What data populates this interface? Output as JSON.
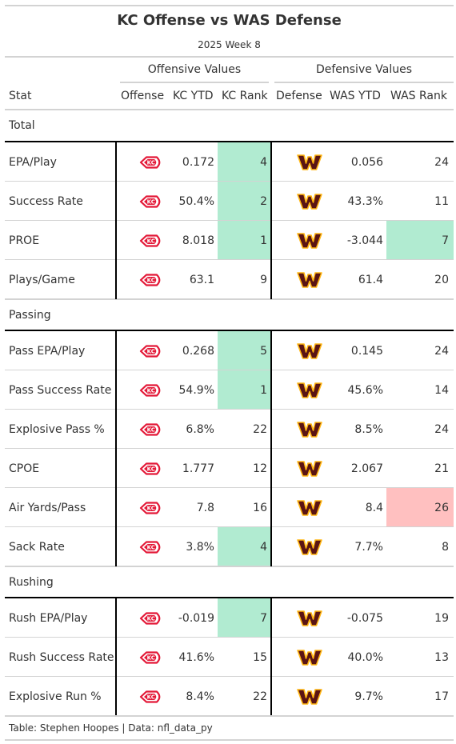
{
  "header": {
    "title": "KC Offense vs WAS Defense",
    "subtitle": "2025 Week 8"
  },
  "spanners": {
    "offense": "Offensive Values",
    "defense": "Defensive Values"
  },
  "columns": {
    "stat": "Stat",
    "offense": "Offense",
    "kc_ytd": "KC YTD",
    "kc_rank": "KC Rank",
    "defense": "Defense",
    "was_ytd": "WAS YTD",
    "was_rank": "WAS Rank"
  },
  "groups": [
    {
      "label": "Total",
      "rows": [
        {
          "stat": "EPA/Play",
          "kc_ytd": "0.172",
          "kc_rank": "4",
          "was_ytd": "0.056",
          "was_rank": "24",
          "kc_highlight": "good",
          "was_highlight": ""
        },
        {
          "stat": "Success Rate",
          "kc_ytd": "50.4%",
          "kc_rank": "2",
          "was_ytd": "43.3%",
          "was_rank": "11",
          "kc_highlight": "good",
          "was_highlight": ""
        },
        {
          "stat": "PROE",
          "kc_ytd": "8.018",
          "kc_rank": "1",
          "was_ytd": "-3.044",
          "was_rank": "7",
          "kc_highlight": "good",
          "was_highlight": "good"
        },
        {
          "stat": "Plays/Game",
          "kc_ytd": "63.1",
          "kc_rank": "9",
          "was_ytd": "61.4",
          "was_rank": "20",
          "kc_highlight": "",
          "was_highlight": ""
        }
      ]
    },
    {
      "label": "Passing",
      "rows": [
        {
          "stat": "Pass EPA/Play",
          "kc_ytd": "0.268",
          "kc_rank": "5",
          "was_ytd": "0.145",
          "was_rank": "24",
          "kc_highlight": "good",
          "was_highlight": ""
        },
        {
          "stat": "Pass Success Rate",
          "kc_ytd": "54.9%",
          "kc_rank": "1",
          "was_ytd": "45.6%",
          "was_rank": "14",
          "kc_highlight": "good",
          "was_highlight": ""
        },
        {
          "stat": "Explosive Pass %",
          "kc_ytd": "6.8%",
          "kc_rank": "22",
          "was_ytd": "8.5%",
          "was_rank": "24",
          "kc_highlight": "",
          "was_highlight": ""
        },
        {
          "stat": "CPOE",
          "kc_ytd": "1.777",
          "kc_rank": "12",
          "was_ytd": "2.067",
          "was_rank": "21",
          "kc_highlight": "",
          "was_highlight": ""
        },
        {
          "stat": "Air Yards/Pass",
          "kc_ytd": "7.8",
          "kc_rank": "16",
          "was_ytd": "8.4",
          "was_rank": "26",
          "kc_highlight": "",
          "was_highlight": "bad"
        },
        {
          "stat": "Sack Rate",
          "kc_ytd": "3.8%",
          "kc_rank": "4",
          "was_ytd": "7.7%",
          "was_rank": "8",
          "kc_highlight": "good",
          "was_highlight": ""
        }
      ]
    },
    {
      "label": "Rushing",
      "rows": [
        {
          "stat": "Rush EPA/Play",
          "kc_ytd": "-0.019",
          "kc_rank": "7",
          "was_ytd": "-0.075",
          "was_rank": "19",
          "kc_highlight": "good",
          "was_highlight": ""
        },
        {
          "stat": "Rush Success Rate",
          "kc_ytd": "41.6%",
          "kc_rank": "15",
          "was_ytd": "40.0%",
          "was_rank": "13",
          "kc_highlight": "",
          "was_highlight": ""
        },
        {
          "stat": "Explosive Run %",
          "kc_ytd": "8.4%",
          "kc_rank": "22",
          "was_ytd": "9.7%",
          "was_rank": "17",
          "kc_highlight": "",
          "was_highlight": ""
        }
      ]
    }
  ],
  "footer": "Table: Stephen Hoopes | Data: nfl_data_py",
  "colors": {
    "good": "#b1ebd1",
    "bad": "#ffc0c0",
    "kc_red": "#e31837",
    "was_burgundy": "#5a1414",
    "was_gold": "#ffb612"
  },
  "icons": {
    "offense_logo": "kc-chiefs-arrowhead-logo",
    "defense_logo": "washington-w-logo"
  }
}
